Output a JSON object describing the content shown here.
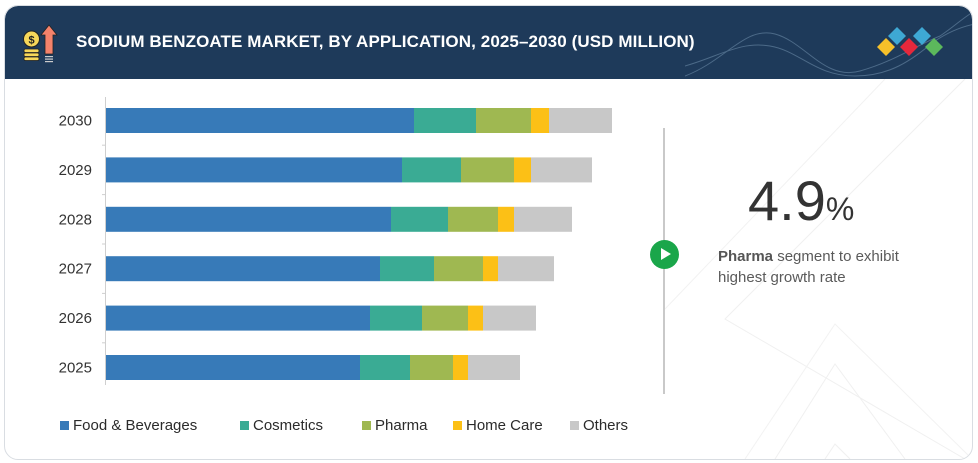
{
  "header": {
    "title": "SODIUM BENZOATE MARKET, BY APPLICATION, 2025–2030 (USD MILLION)",
    "icon": "money-growth-icon",
    "logo": "brand-diamonds-logo"
  },
  "colors": {
    "header_bg": "#1e3a5a",
    "food_beverages": "#377ab8",
    "cosmetics": "#3aab94",
    "pharma": "#9fb851",
    "home_care": "#fcc016",
    "others": "#c8c8c8",
    "play": "#1aa64a"
  },
  "callout": {
    "value": "4.9",
    "unit": "%",
    "highlight": "Pharma",
    "text": " segment to exhibit highest growth rate",
    "icon": "play-icon"
  },
  "chart_data": {
    "type": "bar",
    "orientation": "horizontal",
    "stacked": true,
    "title": "SODIUM BENZOATE MARKET, BY APPLICATION, 2025–2030 (USD MILLION)",
    "xlabel": "",
    "ylabel": "",
    "grid": false,
    "legend_position": "bottom",
    "note": "No value axis or data labels shown; values are relative estimates from bar lengths.",
    "xlim": [
      0,
      520
    ],
    "categories": [
      "2030",
      "2029",
      "2028",
      "2027",
      "2026",
      "2025"
    ],
    "series": [
      {
        "name": "Food & Beverages",
        "color": "#377ab8",
        "values": [
          308,
          296,
          285,
          274,
          264,
          254
        ]
      },
      {
        "name": "Cosmetics",
        "color": "#3aab94",
        "values": [
          62,
          59,
          57,
          54,
          52,
          50
        ]
      },
      {
        "name": "Pharma",
        "color": "#9fb851",
        "values": [
          55,
          53,
          50,
          49,
          46,
          43
        ]
      },
      {
        "name": "Home Care",
        "color": "#fcc016",
        "values": [
          18,
          17,
          16,
          15,
          15,
          15
        ]
      },
      {
        "name": "Others",
        "color": "#c8c8c8",
        "values": [
          63,
          61,
          58,
          56,
          53,
          52
        ]
      }
    ]
  }
}
